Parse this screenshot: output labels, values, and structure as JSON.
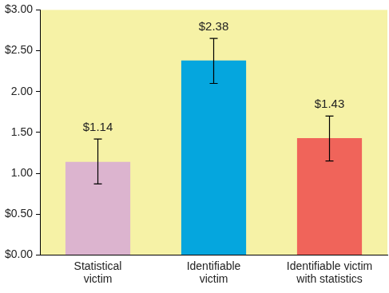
{
  "chart_data": {
    "type": "bar",
    "categories": [
      "Statistical\nvictim",
      "Identifiable\nvictim",
      "Identifiable victim\nwith statistics"
    ],
    "values": [
      1.14,
      2.38,
      1.43
    ],
    "value_labels": [
      "$1.14",
      "$2.38",
      "$1.43"
    ],
    "error_low": [
      0.87,
      2.1,
      1.15
    ],
    "error_high": [
      1.42,
      2.65,
      1.7
    ],
    "colors": [
      "#dcb4cf",
      "#05a6de",
      "#f0645a"
    ],
    "ylim": [
      0,
      3
    ],
    "yticks": [
      {
        "value": 0,
        "label": "$0.00"
      },
      {
        "value": 0.5,
        "label": "$0.50"
      },
      {
        "value": 1,
        "label": "1.00"
      },
      {
        "value": 1.5,
        "label": "1.50"
      },
      {
        "value": 2,
        "label": "2.00"
      },
      {
        "value": 2.5,
        "label": "$2.50"
      },
      {
        "value": 3,
        "label": "$3.00"
      }
    ],
    "grid": false,
    "data_labels": true
  }
}
